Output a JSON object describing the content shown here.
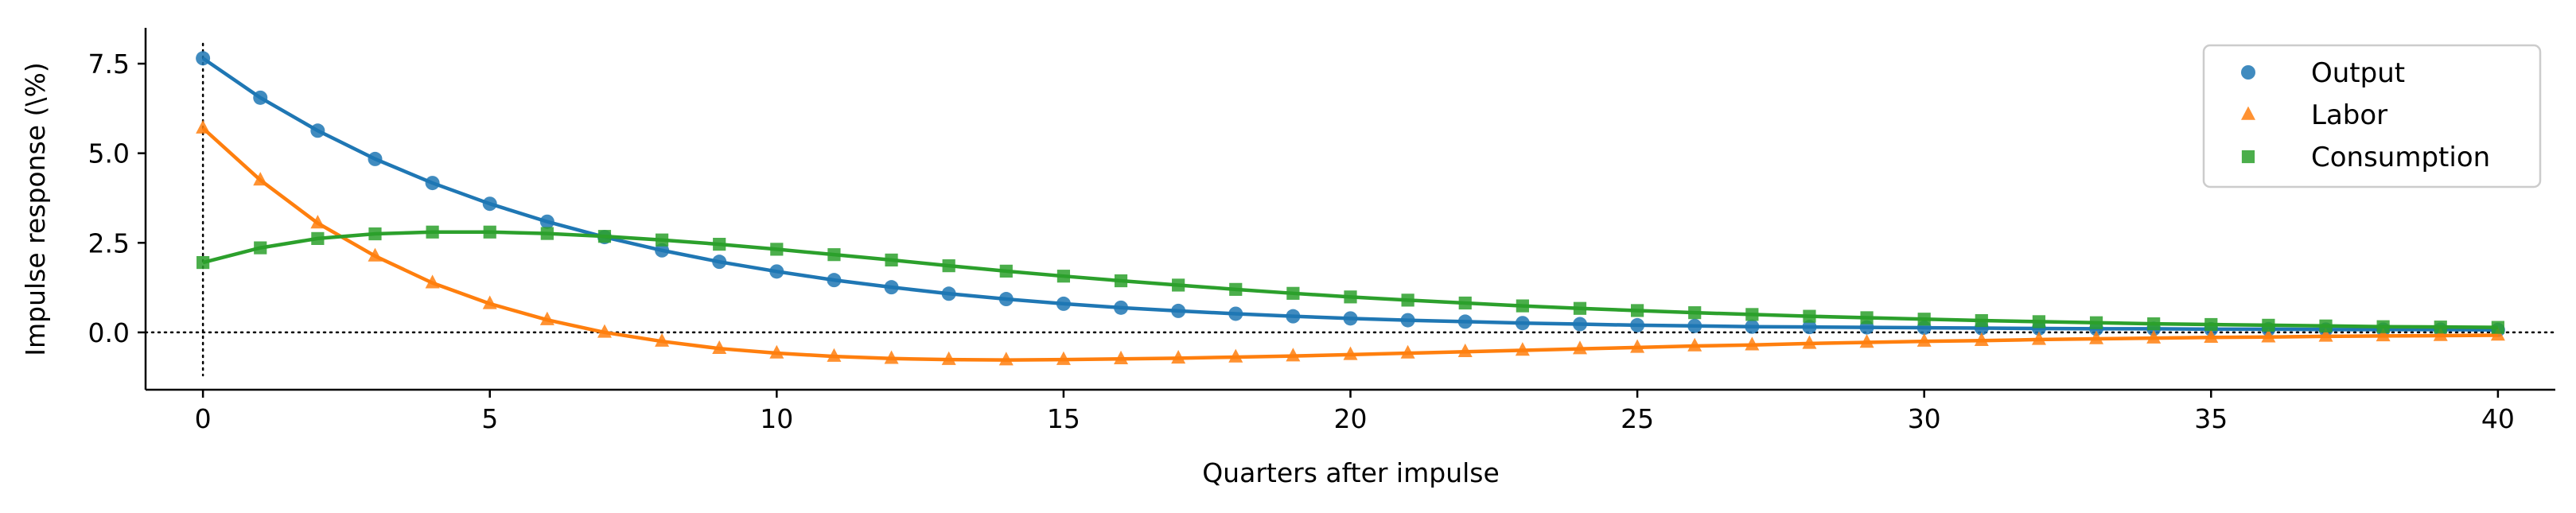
{
  "chart_data": {
    "type": "line",
    "title": "",
    "xlabel": "Quarters after impulse",
    "ylabel": "Impulse response (\\%)",
    "xlim": [
      -1,
      41
    ],
    "ylim": [
      -1.6,
      8.5
    ],
    "xticks": [
      0,
      5,
      10,
      15,
      20,
      25,
      30,
      35,
      40
    ],
    "xtick_labels": [
      "0",
      "5",
      "10",
      "15",
      "20",
      "25",
      "30",
      "35",
      "40"
    ],
    "yticks": [
      0.0,
      2.5,
      5.0,
      7.5
    ],
    "ytick_labels": [
      "0.0",
      "2.5",
      "5.0",
      "7.5"
    ],
    "grid": false,
    "legend_position": "top-right",
    "reference_lines": {
      "horizontal_y": 0,
      "vertical_x": 0,
      "style": "dotted"
    },
    "x": [
      0,
      1,
      2,
      3,
      4,
      5,
      6,
      7,
      8,
      9,
      10,
      11,
      12,
      13,
      14,
      15,
      16,
      17,
      18,
      19,
      20,
      21,
      22,
      23,
      24,
      25,
      26,
      27,
      28,
      29,
      30,
      31,
      32,
      33,
      34,
      35,
      36,
      37,
      38,
      39,
      40
    ],
    "series": [
      {
        "name": "Output",
        "color": "#1f77b4",
        "marker": "circle",
        "values": [
          7.65,
          6.55,
          5.63,
          4.84,
          4.17,
          3.59,
          3.09,
          2.66,
          2.29,
          1.97,
          1.7,
          1.46,
          1.26,
          1.08,
          0.93,
          0.8,
          0.69,
          0.6,
          0.52,
          0.45,
          0.39,
          0.34,
          0.3,
          0.26,
          0.23,
          0.2,
          0.18,
          0.16,
          0.15,
          0.14,
          0.13,
          0.12,
          0.11,
          0.1,
          0.1,
          0.09,
          0.09,
          0.08,
          0.08,
          0.08,
          0.07
        ]
      },
      {
        "name": "Labor",
        "color": "#ff7f0e",
        "marker": "triangle",
        "values": [
          5.7,
          4.25,
          3.05,
          2.13,
          1.38,
          0.8,
          0.35,
          0.0,
          -0.25,
          -0.45,
          -0.58,
          -0.67,
          -0.73,
          -0.76,
          -0.77,
          -0.76,
          -0.74,
          -0.72,
          -0.69,
          -0.66,
          -0.62,
          -0.58,
          -0.54,
          -0.5,
          -0.46,
          -0.42,
          -0.38,
          -0.35,
          -0.31,
          -0.28,
          -0.25,
          -0.23,
          -0.2,
          -0.18,
          -0.16,
          -0.14,
          -0.13,
          -0.11,
          -0.1,
          -0.09,
          -0.08
        ]
      },
      {
        "name": "Consumption",
        "color": "#2ca02c",
        "marker": "square",
        "values": [
          1.95,
          2.36,
          2.62,
          2.75,
          2.8,
          2.8,
          2.76,
          2.68,
          2.58,
          2.46,
          2.32,
          2.17,
          2.02,
          1.86,
          1.71,
          1.57,
          1.44,
          1.32,
          1.2,
          1.09,
          0.99,
          0.9,
          0.82,
          0.74,
          0.67,
          0.61,
          0.55,
          0.5,
          0.45,
          0.41,
          0.37,
          0.33,
          0.3,
          0.27,
          0.24,
          0.22,
          0.2,
          0.18,
          0.16,
          0.15,
          0.14
        ]
      }
    ]
  }
}
